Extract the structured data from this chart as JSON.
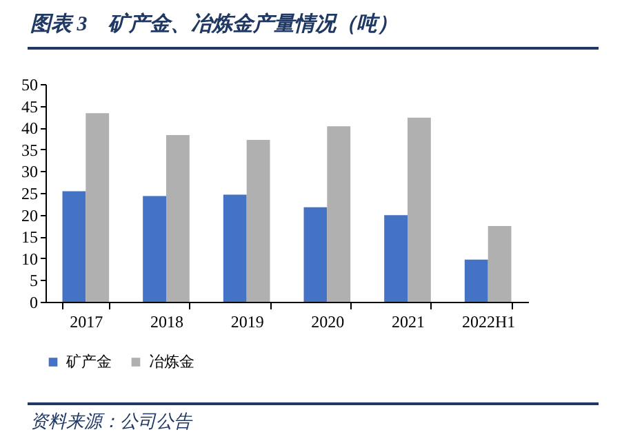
{
  "chart_data": {
    "type": "bar",
    "title": "图表 3　矿产金、冶炼金产量情况（吨）",
    "categories": [
      "2017",
      "2018",
      "2019",
      "2020",
      "2021",
      "2022H1"
    ],
    "series": [
      {
        "name": "矿产金",
        "color": "#4472c4",
        "values": [
          25.4,
          24.3,
          24.6,
          21.7,
          19.9,
          9.7
        ]
      },
      {
        "name": "冶炼金",
        "color": "#b0b0b0",
        "values": [
          43.3,
          38.3,
          37.2,
          40.3,
          42.3,
          17.4
        ]
      }
    ],
    "ylim": [
      0,
      50
    ],
    "yticks": [
      0,
      5,
      10,
      15,
      20,
      25,
      30,
      35,
      40,
      45,
      50
    ],
    "grid": false,
    "legend": "bottom",
    "annotations": [
      "资料来源：公司公告"
    ]
  }
}
